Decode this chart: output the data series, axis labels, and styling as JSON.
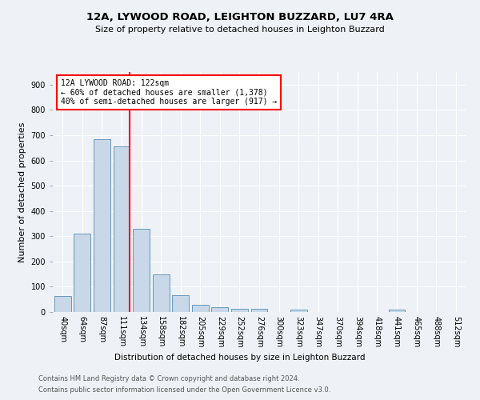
{
  "title": "12A, LYWOOD ROAD, LEIGHTON BUZZARD, LU7 4RA",
  "subtitle": "Size of property relative to detached houses in Leighton Buzzard",
  "xlabel": "Distribution of detached houses by size in Leighton Buzzard",
  "ylabel": "Number of detached properties",
  "footnote1": "Contains HM Land Registry data © Crown copyright and database right 2024.",
  "footnote2": "Contains public sector information licensed under the Open Government Licence v3.0.",
  "bar_labels": [
    "40sqm",
    "64sqm",
    "87sqm",
    "111sqm",
    "134sqm",
    "158sqm",
    "182sqm",
    "205sqm",
    "229sqm",
    "252sqm",
    "276sqm",
    "300sqm",
    "323sqm",
    "347sqm",
    "370sqm",
    "394sqm",
    "418sqm",
    "441sqm",
    "465sqm",
    "488sqm",
    "512sqm"
  ],
  "bar_values": [
    62,
    310,
    685,
    655,
    328,
    150,
    65,
    30,
    20,
    12,
    14,
    0,
    8,
    0,
    0,
    0,
    0,
    10,
    0,
    0,
    0
  ],
  "bar_color": "#c8d8e8",
  "bar_edge_color": "#6699bb",
  "annotation_text": "12A LYWOOD ROAD: 122sqm\n← 60% of detached houses are smaller (1,378)\n40% of semi-detached houses are larger (917) →",
  "annotation_box_color": "white",
  "annotation_box_edge_color": "red",
  "vline_x": 3.42,
  "vline_color": "red",
  "ylim": [
    0,
    950
  ],
  "yticks": [
    0,
    100,
    200,
    300,
    400,
    500,
    600,
    700,
    800,
    900
  ],
  "bg_color": "#eef2f7",
  "grid_color": "white",
  "title_fontsize": 9.5,
  "subtitle_fontsize": 8,
  "ylabel_fontsize": 8,
  "xlabel_fontsize": 7.5,
  "tick_fontsize": 7,
  "footnote_fontsize": 6
}
